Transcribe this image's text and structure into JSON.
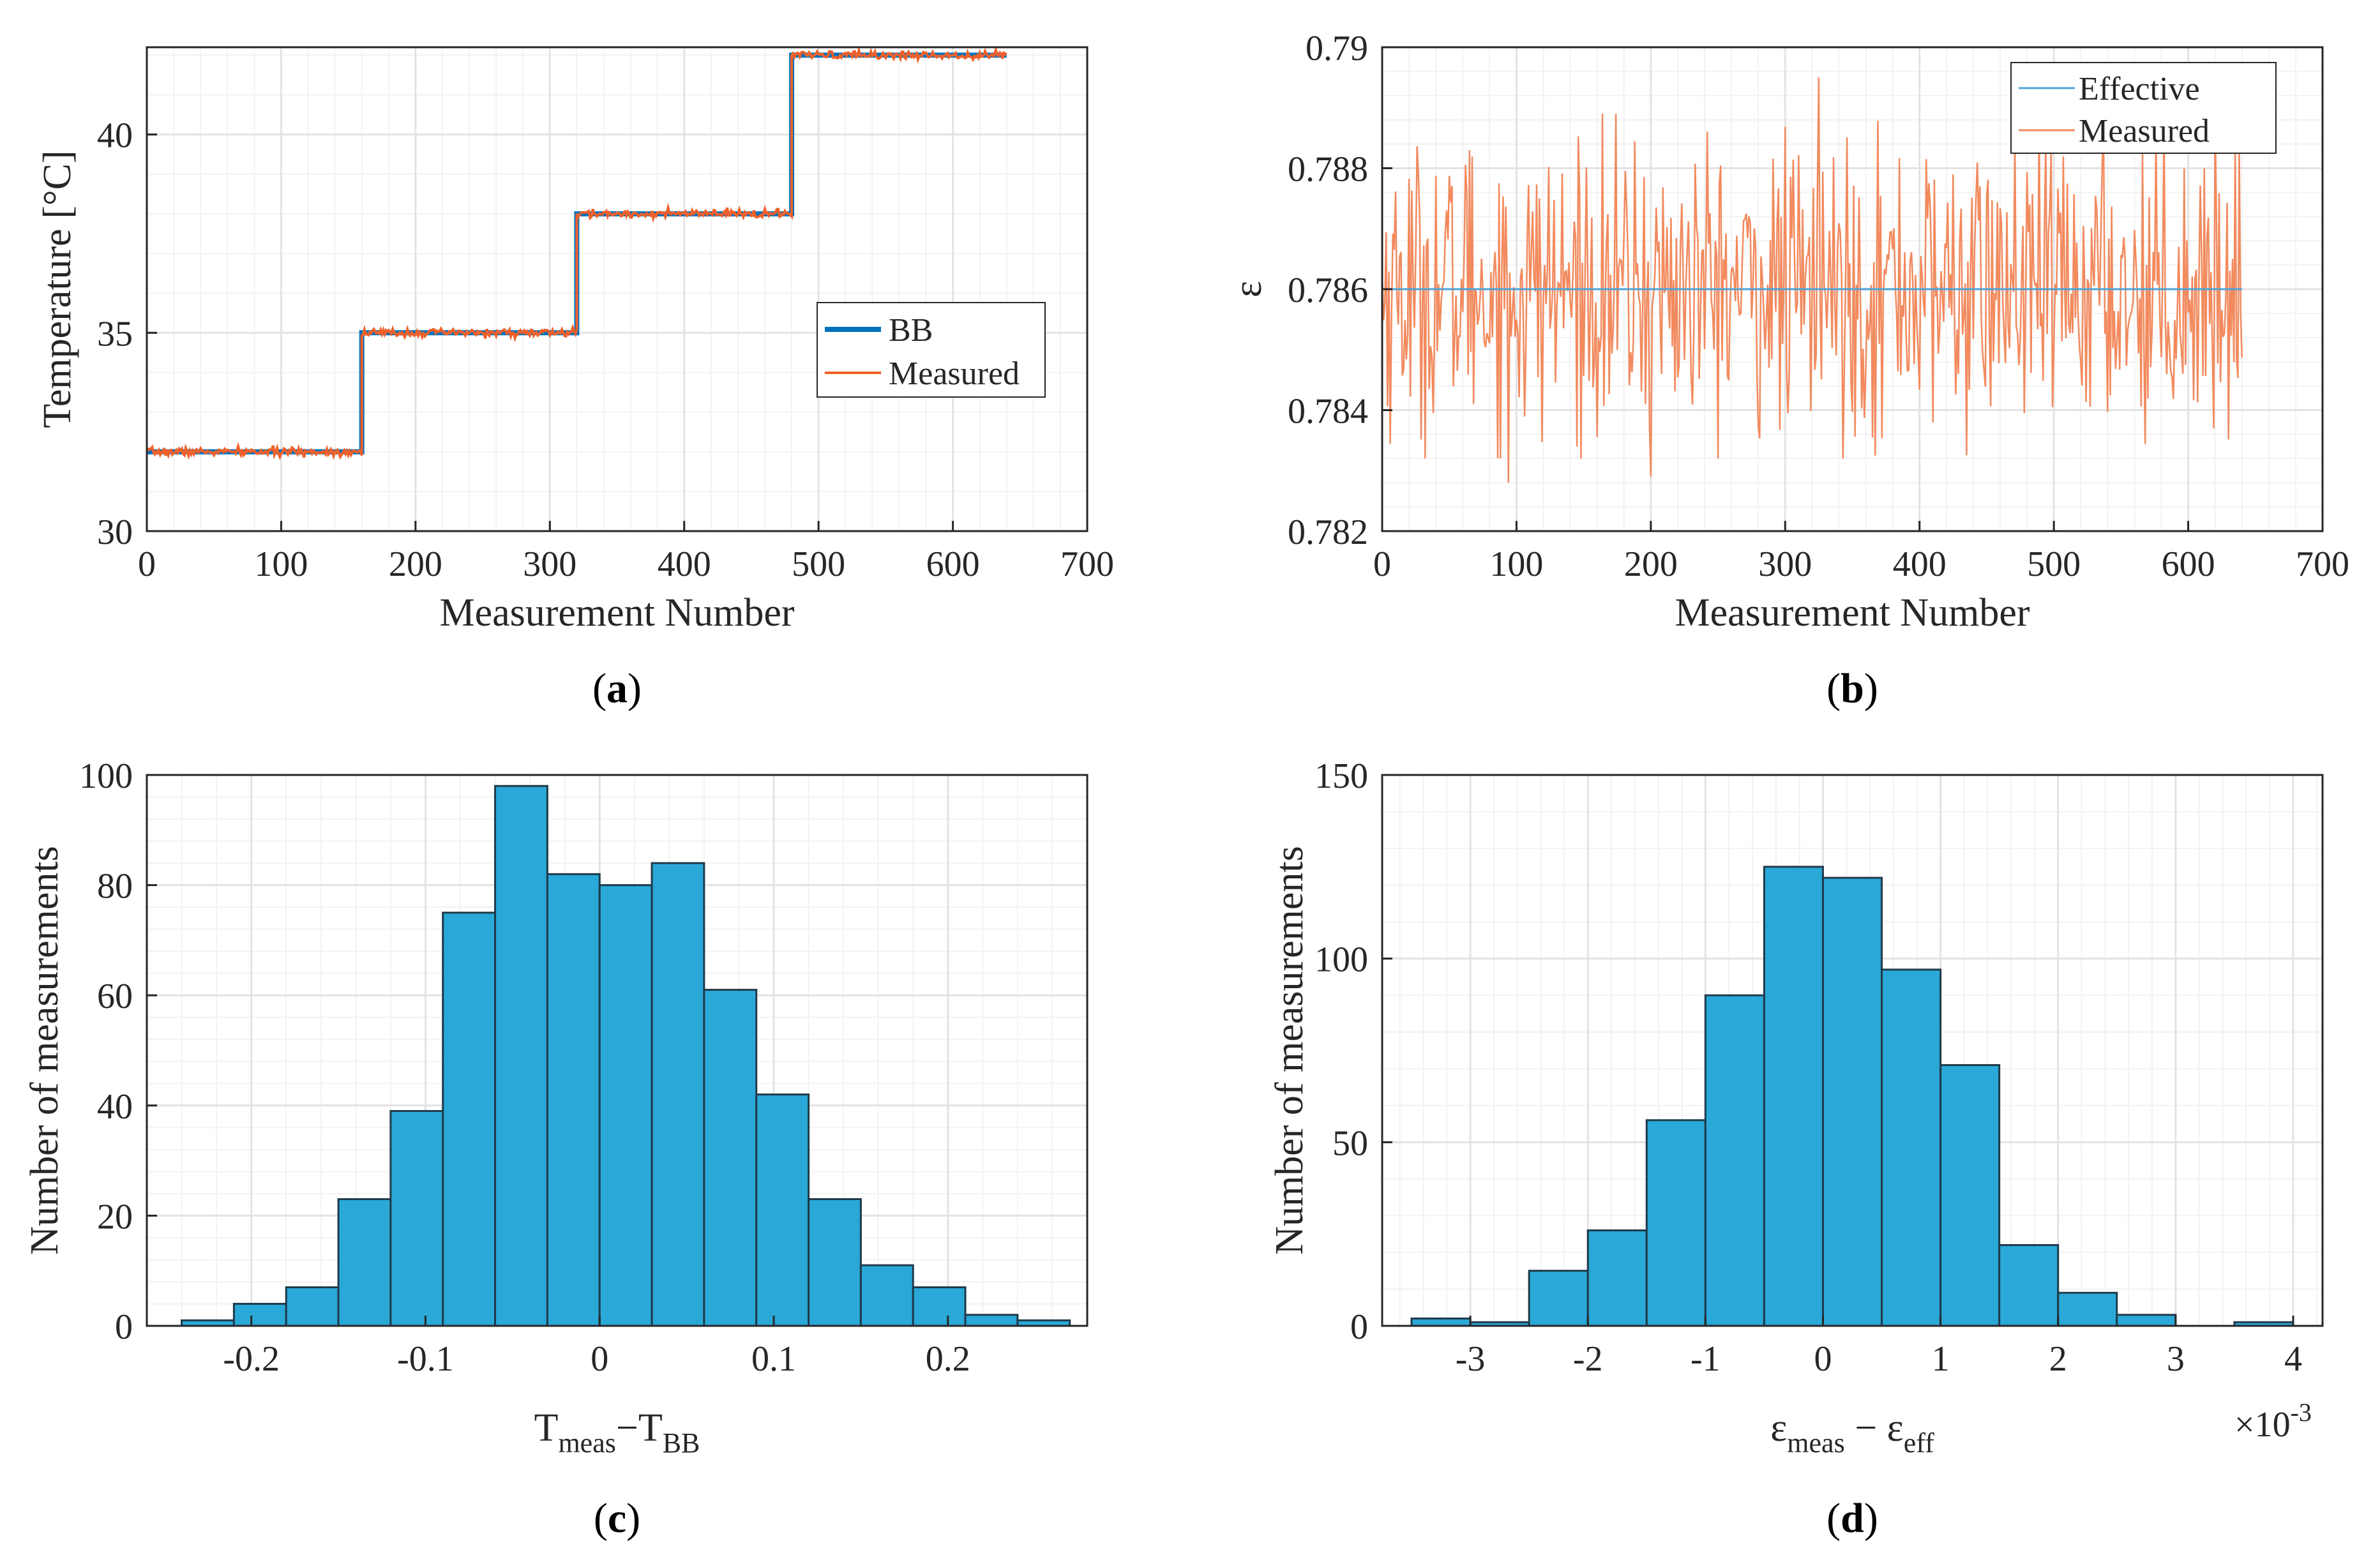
{
  "colors": {
    "bb": "#0072BD",
    "measured": "#F0602A",
    "effective": "#4DA3D6",
    "measured_light": "#F28A5E",
    "hist_fill": "#2AA8D8",
    "hist_edge": "#1F3A4A",
    "grid": "#E3E3E3",
    "axis": "#262626"
  },
  "chart_data": [
    {
      "id": "a",
      "type": "line",
      "caption": {
        "open": "(",
        "letter": "a",
        "close": ")"
      },
      "xlabel": "Measurement Number",
      "ylabel": "Temperature [°C]",
      "xlim": [
        0,
        700
      ],
      "ylim": [
        30,
        42.2
      ],
      "xticks": [
        0,
        100,
        200,
        300,
        400,
        500,
        600,
        700
      ],
      "xtick_labels": [
        "0",
        "100",
        "200",
        "300",
        "400",
        "500",
        "600",
        "700"
      ],
      "yticks": [
        30,
        35,
        40
      ],
      "ytick_labels": [
        "30",
        "35",
        "40"
      ],
      "grid": true,
      "legend": {
        "position": "right-middle",
        "entries": [
          "BB",
          "Measured"
        ]
      },
      "series": [
        {
          "name": "BB",
          "style": "step",
          "x": [
            0,
            160,
            160,
            320,
            320,
            480,
            480,
            640
          ],
          "y": [
            32,
            32,
            35,
            35,
            38,
            38,
            42,
            42
          ]
        },
        {
          "name": "Measured",
          "style": "noisy-step",
          "x_range": [
            0,
            640
          ],
          "levels": [
            {
              "x_start": 0,
              "x_end": 160,
              "y": 32
            },
            {
              "x_start": 160,
              "x_end": 320,
              "y": 35
            },
            {
              "x_start": 320,
              "x_end": 480,
              "y": 38
            },
            {
              "x_start": 480,
              "x_end": 640,
              "y": 42
            }
          ],
          "noise_sd": 0.05
        }
      ]
    },
    {
      "id": "b",
      "type": "line",
      "caption": {
        "open": "(",
        "letter": "b",
        "close": ")"
      },
      "xlabel": "Measurement Number",
      "ylabel": "ε",
      "xlim": [
        0,
        700
      ],
      "ylim": [
        0.782,
        0.79
      ],
      "xticks": [
        0,
        100,
        200,
        300,
        400,
        500,
        600,
        700
      ],
      "xtick_labels": [
        "0",
        "100",
        "200",
        "300",
        "400",
        "500",
        "600",
        "700"
      ],
      "yticks": [
        0.782,
        0.784,
        0.786,
        0.788,
        0.79
      ],
      "ytick_labels": [
        "0.782",
        "0.784",
        "0.786",
        "0.788",
        "0.79"
      ],
      "grid": true,
      "legend": {
        "position": "top-right",
        "entries": [
          "Effective",
          "Measured"
        ]
      },
      "series": [
        {
          "name": "Effective",
          "style": "flat",
          "x": [
            0,
            640
          ],
          "y": [
            0.786,
            0.786
          ]
        },
        {
          "name": "Measured",
          "style": "noise",
          "x_range": [
            0,
            640
          ],
          "mean": 0.786,
          "sd": 0.0012,
          "extremes": [
            {
              "x": 325,
              "y": 0.7895
            },
            {
              "x": 94,
              "y": 0.7828
            },
            {
              "x": 200,
              "y": 0.7829
            },
            {
              "x": 65,
              "y": 0.7883
            },
            {
              "x": 612,
              "y": 0.788
            }
          ]
        }
      ]
    },
    {
      "id": "c",
      "type": "bar",
      "caption": {
        "open": "(",
        "letter": "c",
        "close": ")"
      },
      "xlabel": {
        "t1": "T",
        "s1": "meas",
        "mid": "−T",
        "s2": "BB"
      },
      "ylabel": "Number of measurements",
      "xlim": [
        -0.26,
        0.28
      ],
      "ylim": [
        0,
        100
      ],
      "xticks": [
        -0.2,
        -0.1,
        0,
        0.1,
        0.2
      ],
      "xtick_labels": [
        "-0.2",
        "-0.1",
        "0",
        "0.1",
        "0.2"
      ],
      "yticks": [
        0,
        20,
        40,
        60,
        80,
        100
      ],
      "ytick_labels": [
        "0",
        "20",
        "40",
        "60",
        "80",
        "100"
      ],
      "grid": true,
      "bin_edges": [
        -0.24,
        -0.21,
        -0.18,
        -0.15,
        -0.12,
        -0.09,
        -0.06,
        -0.03,
        0.0,
        0.03,
        0.06,
        0.09,
        0.12,
        0.15,
        0.18,
        0.21,
        0.24,
        0.27
      ],
      "values": [
        1,
        4,
        7,
        23,
        39,
        75,
        98,
        82,
        80,
        84,
        61,
        42,
        23,
        11,
        7,
        2,
        1
      ]
    },
    {
      "id": "d",
      "type": "bar",
      "caption": {
        "open": "(",
        "letter": "d",
        "close": ")"
      },
      "xlabel": {
        "t1": "ε",
        "s1": "meas",
        "mid": " − ε",
        "s2": "eff"
      },
      "ylabel": "Number of measurements",
      "exponent_label": {
        "base": "×10",
        "power": "-3"
      },
      "xlim": [
        -3.75,
        4.25
      ],
      "ylim": [
        0,
        150
      ],
      "xticks": [
        -3,
        -2,
        -1,
        0,
        1,
        2,
        3,
        4
      ],
      "xtick_labels": [
        "-3",
        "-2",
        "-1",
        "0",
        "1",
        "2",
        "3",
        "4"
      ],
      "yticks": [
        0,
        50,
        100,
        150
      ],
      "ytick_labels": [
        "0",
        "50",
        "100",
        "150"
      ],
      "grid": true,
      "bin_edges": [
        -3.5,
        -3.0,
        -2.5,
        -2.0,
        -1.5,
        -1.0,
        -0.5,
        0.0,
        0.5,
        1.0,
        1.5,
        2.0,
        2.5,
        3.0,
        3.5,
        4.0
      ],
      "values": [
        2,
        1,
        15,
        26,
        56,
        90,
        125,
        122,
        97,
        71,
        22,
        9,
        3,
        0,
        1
      ]
    }
  ]
}
